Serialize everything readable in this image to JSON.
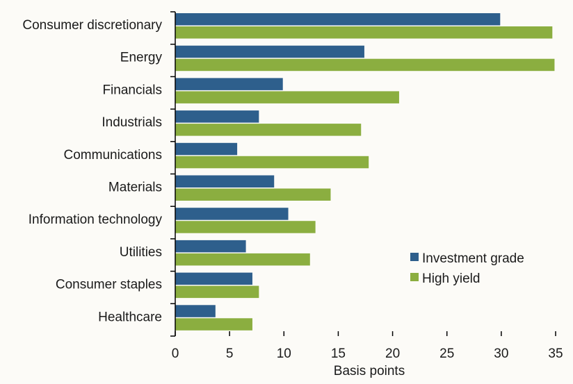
{
  "chart_data": {
    "type": "bar",
    "orientation": "horizontal",
    "categories": [
      "Consumer discretionary",
      "Energy",
      "Financials",
      "Industrials",
      "Communications",
      "Materials",
      "Information technology",
      "Utilities",
      "Consumer staples",
      "Healthcare"
    ],
    "series": [
      {
        "name": "Investment grade",
        "color": "#2e5f8c",
        "values": [
          29.9,
          17.4,
          9.9,
          7.7,
          5.7,
          9.1,
          10.4,
          6.5,
          7.1,
          3.7
        ]
      },
      {
        "name": "High yield",
        "color": "#8bae40",
        "values": [
          34.7,
          34.9,
          20.6,
          17.1,
          17.8,
          14.3,
          12.9,
          12.4,
          7.7,
          7.1
        ]
      }
    ],
    "xlabel": "Basis points",
    "xlim": [
      0,
      35
    ],
    "xticks": [
      "0",
      "5",
      "10",
      "15",
      "20",
      "25",
      "30",
      "35"
    ],
    "grid": false,
    "legend_position": "lower-right"
  }
}
